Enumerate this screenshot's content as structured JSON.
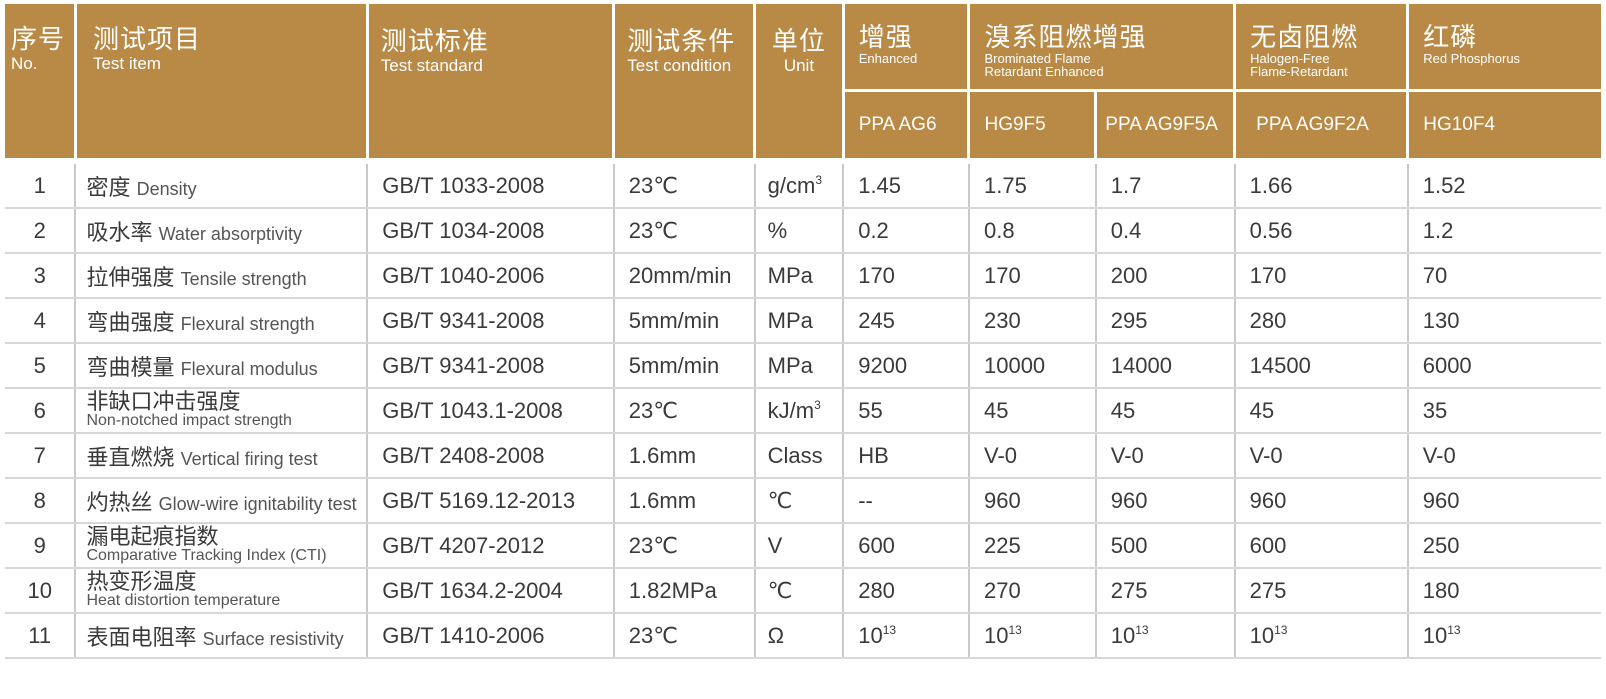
{
  "header": {
    "no": {
      "zh": "序号",
      "en": "No."
    },
    "item": {
      "zh": "测试项目",
      "en": "Test item"
    },
    "standard": {
      "zh": "测试标准",
      "en": "Test standard"
    },
    "condition": {
      "zh": "测试条件",
      "en": "Test condition"
    },
    "unit": {
      "zh": "单位",
      "en": "Unit"
    },
    "groups": [
      {
        "zh": "增强",
        "en": "Enhanced"
      },
      {
        "zh": "溴系阻燃增强",
        "en1": "Brominated Flame",
        "en2": "Retardant Enhanced"
      },
      {
        "zh": "无卤阻燃",
        "en1": "Halogen-Free",
        "en2": "Flame-Retardant"
      },
      {
        "zh": "红磷",
        "en": "Red Phosphorus"
      }
    ],
    "grades": [
      "PPA AG6",
      "HG9F5",
      "PPA AG9F5A",
      "PPA AG9F2A",
      "HG10F4"
    ]
  },
  "rows": [
    {
      "no": "1",
      "zh": "密度",
      "en": "Density",
      "std": "GB/T 1033-2008",
      "cond": "23℃",
      "unit": "g/cm",
      "unit_sup": "3",
      "v": [
        "1.45",
        "1.75",
        "1.7",
        "1.66",
        "1.52"
      ]
    },
    {
      "no": "2",
      "zh": "吸水率",
      "en": "Water absorptivity",
      "std": "GB/T 1034-2008",
      "cond": "23℃",
      "unit": "%",
      "v": [
        "0.2",
        "0.8",
        "0.4",
        "0.56",
        "1.2"
      ]
    },
    {
      "no": "3",
      "zh": "拉伸强度",
      "en": "Tensile strength",
      "std": "GB/T 1040-2006",
      "cond": "20mm/min",
      "unit": "MPa",
      "v": [
        "170",
        "170",
        "200",
        "170",
        "70"
      ]
    },
    {
      "no": "4",
      "zh": "弯曲强度",
      "en": "Flexural strength",
      "std": "GB/T 9341-2008",
      "cond": "5mm/min",
      "unit": "MPa",
      "v": [
        "245",
        "230",
        "295",
        "280",
        "130"
      ]
    },
    {
      "no": "5",
      "zh": "弯曲模量",
      "en": "Flexural modulus",
      "std": "GB/T 9341-2008",
      "cond": "5mm/min",
      "unit": "MPa",
      "v": [
        "9200",
        "10000",
        "14000",
        "14500",
        "6000"
      ]
    },
    {
      "no": "6",
      "zh": "非缺口冲击强度",
      "en": "Non-notched impact strength",
      "std": "GB/T 1043.1-2008",
      "cond": "23℃",
      "unit": "kJ/m",
      "unit_sup": "3",
      "v": [
        "55",
        "45",
        "45",
        "45",
        "35"
      ]
    },
    {
      "no": "7",
      "zh": "垂直燃烧",
      "en": "Vertical firing test",
      "std": "GB/T 2408-2008",
      "cond": "1.6mm",
      "unit": "Class",
      "v": [
        "HB",
        "V-0",
        "V-0",
        "V-0",
        "V-0"
      ]
    },
    {
      "no": "8",
      "zh": "灼热丝",
      "en": "Glow-wire ignitability test",
      "std": "GB/T 5169.12-2013",
      "cond": "1.6mm",
      "unit": "℃",
      "v": [
        "--",
        "960",
        "960",
        "960",
        "960"
      ]
    },
    {
      "no": "9",
      "zh": "漏电起痕指数",
      "en": "Comparative Tracking Index (CTI)",
      "std": "GB/T 4207-2012",
      "cond": "23℃",
      "unit": "V",
      "v": [
        "600",
        "225",
        "500",
        "600",
        "250"
      ]
    },
    {
      "no": "10",
      "zh": "热变形温度",
      "en": "Heat distortion temperature",
      "std": "GB/T 1634.2-2004",
      "cond": "1.82MPa",
      "unit": "℃",
      "v": [
        "280",
        "270",
        "275",
        "275",
        "180"
      ]
    },
    {
      "no": "11",
      "zh": "表面电阻率",
      "en": "Surface resistivity",
      "std": "GB/T 1410-2006",
      "cond": "23℃",
      "unit": "Ω",
      "v": [
        "10|13",
        "10|13",
        "10|13",
        "10|13",
        "10|13"
      ]
    }
  ],
  "colors": {
    "header_bg": "#b88a46",
    "header_text": "#ffffff",
    "text": "#3a3a3a",
    "rule": "#c9c9c9"
  }
}
